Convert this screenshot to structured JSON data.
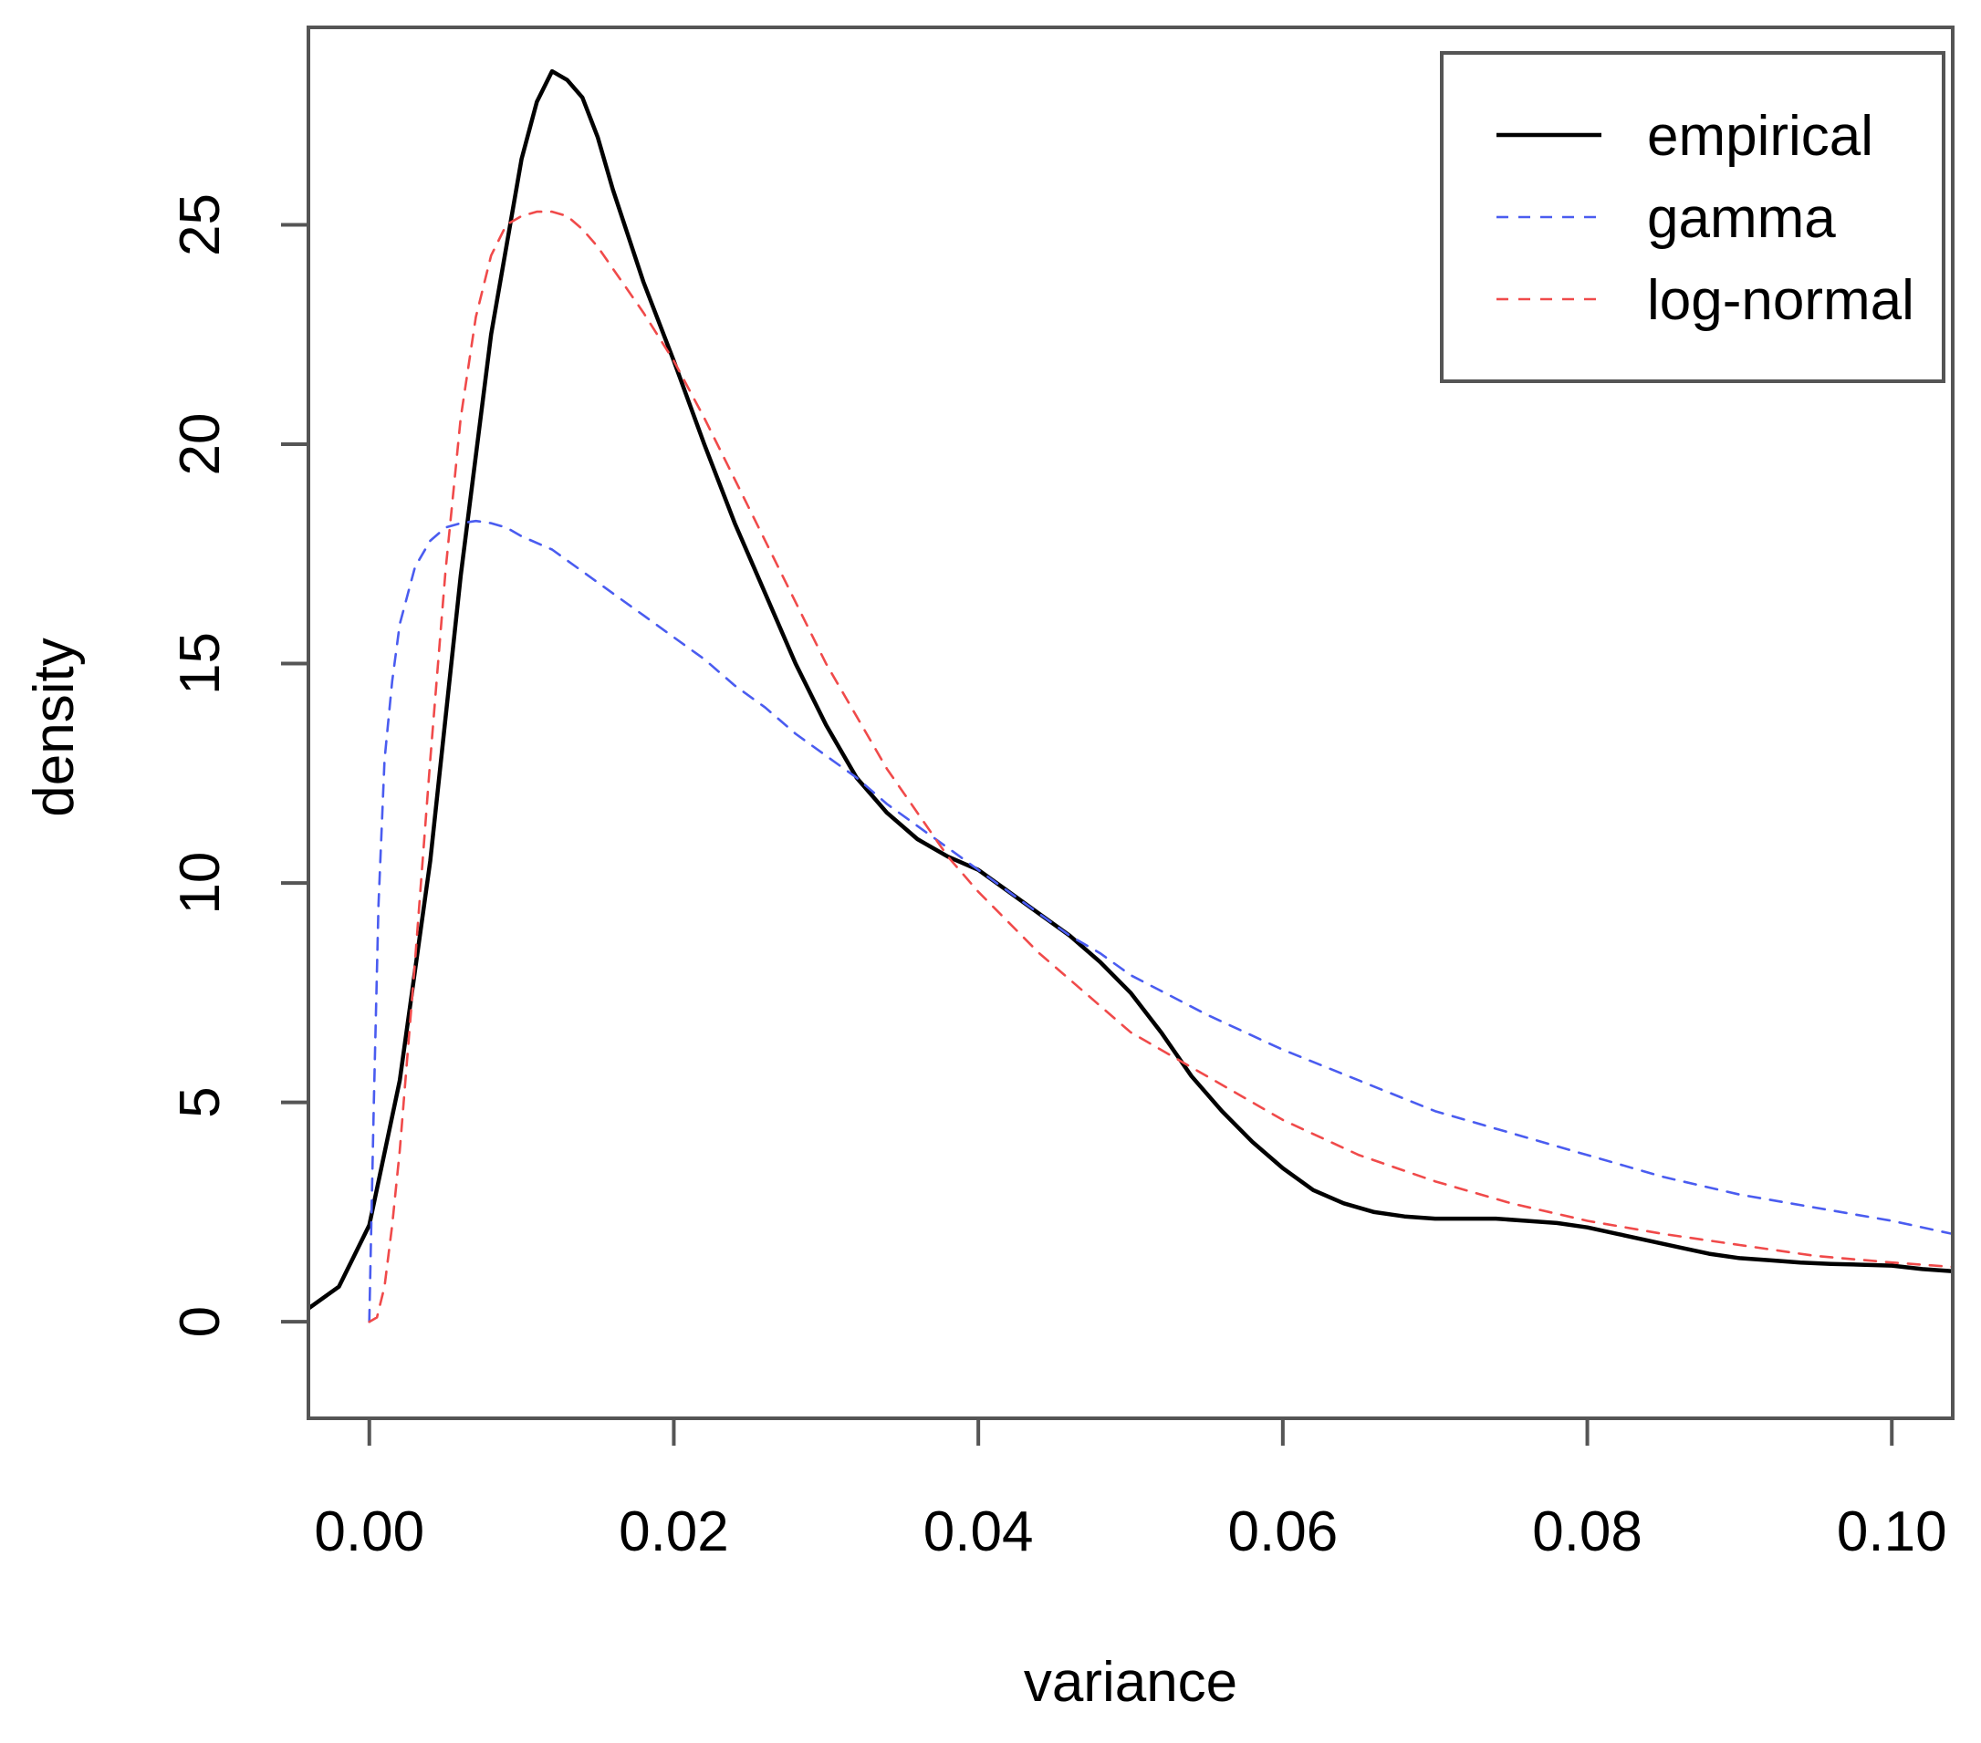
{
  "chart_data": {
    "type": "line",
    "title": "",
    "xlabel": "variance",
    "ylabel": "density",
    "xlim": [
      -0.004,
      0.104
    ],
    "ylim": [
      -2.2,
      29.5
    ],
    "x_ticks": [
      {
        "value": 0.0,
        "label": "0.00"
      },
      {
        "value": 0.02,
        "label": "0.02"
      },
      {
        "value": 0.04,
        "label": "0.04"
      },
      {
        "value": 0.06,
        "label": "0.06"
      },
      {
        "value": 0.08,
        "label": "0.08"
      },
      {
        "value": 0.1,
        "label": "0.10"
      }
    ],
    "y_ticks": [
      {
        "value": 0,
        "label": "0"
      },
      {
        "value": 5,
        "label": "5"
      },
      {
        "value": 10,
        "label": "10"
      },
      {
        "value": 15,
        "label": "15"
      },
      {
        "value": 20,
        "label": "20"
      },
      {
        "value": 25,
        "label": "25"
      }
    ],
    "grid": false,
    "legend_position": "top-right",
    "series": [
      {
        "name": "empirical",
        "color": "#000000",
        "line_style": "solid",
        "x": [
          -0.004,
          -0.002,
          0.0,
          0.002,
          0.004,
          0.006,
          0.008,
          0.01,
          0.011,
          0.012,
          0.013,
          0.014,
          0.015,
          0.016,
          0.018,
          0.02,
          0.022,
          0.024,
          0.026,
          0.028,
          0.03,
          0.032,
          0.034,
          0.036,
          0.038,
          0.04,
          0.042,
          0.044,
          0.046,
          0.048,
          0.05,
          0.052,
          0.054,
          0.056,
          0.058,
          0.06,
          0.062,
          0.064,
          0.066,
          0.068,
          0.07,
          0.072,
          0.074,
          0.076,
          0.078,
          0.08,
          0.082,
          0.084,
          0.086,
          0.088,
          0.09,
          0.092,
          0.094,
          0.096,
          0.098,
          0.1,
          0.102,
          0.104
        ],
        "y": [
          0.3,
          0.8,
          2.2,
          5.5,
          10.5,
          17.0,
          22.5,
          26.5,
          27.8,
          28.5,
          28.3,
          27.9,
          27.0,
          25.8,
          23.7,
          21.9,
          20.0,
          18.2,
          16.6,
          15.0,
          13.6,
          12.4,
          11.6,
          11.0,
          10.6,
          10.3,
          9.8,
          9.3,
          8.8,
          8.2,
          7.5,
          6.6,
          5.6,
          4.8,
          4.1,
          3.5,
          3.0,
          2.7,
          2.5,
          2.4,
          2.35,
          2.35,
          2.35,
          2.3,
          2.25,
          2.15,
          2.0,
          1.85,
          1.7,
          1.55,
          1.45,
          1.4,
          1.35,
          1.32,
          1.3,
          1.28,
          1.2,
          1.15
        ]
      },
      {
        "name": "gamma",
        "color": "#4a5cf0",
        "line_style": "dashed",
        "x": [
          0.0,
          0.0003,
          0.0006,
          0.001,
          0.0015,
          0.002,
          0.003,
          0.004,
          0.005,
          0.006,
          0.007,
          0.008,
          0.009,
          0.01,
          0.012,
          0.014,
          0.016,
          0.018,
          0.02,
          0.022,
          0.024,
          0.026,
          0.028,
          0.03,
          0.032,
          0.034,
          0.036,
          0.038,
          0.04,
          0.042,
          0.044,
          0.046,
          0.048,
          0.05,
          0.055,
          0.06,
          0.065,
          0.07,
          0.075,
          0.08,
          0.085,
          0.09,
          0.095,
          0.1,
          0.104
        ],
        "y": [
          0.0,
          5.0,
          9.5,
          12.8,
          14.6,
          15.9,
          17.2,
          17.8,
          18.1,
          18.2,
          18.25,
          18.2,
          18.1,
          17.9,
          17.6,
          17.1,
          16.6,
          16.1,
          15.6,
          15.1,
          14.5,
          14.0,
          13.4,
          12.9,
          12.4,
          11.8,
          11.3,
          10.8,
          10.3,
          9.8,
          9.3,
          8.8,
          8.4,
          7.9,
          7.0,
          6.2,
          5.5,
          4.8,
          4.3,
          3.8,
          3.3,
          2.9,
          2.6,
          2.3,
          2.0
        ]
      },
      {
        "name": "log-normal",
        "color": "#f04a4a",
        "line_style": "dashed",
        "x": [
          0.0,
          0.0005,
          0.001,
          0.0015,
          0.002,
          0.003,
          0.004,
          0.005,
          0.006,
          0.007,
          0.008,
          0.009,
          0.01,
          0.011,
          0.012,
          0.013,
          0.014,
          0.015,
          0.016,
          0.018,
          0.02,
          0.022,
          0.024,
          0.026,
          0.028,
          0.03,
          0.032,
          0.034,
          0.036,
          0.038,
          0.04,
          0.042,
          0.044,
          0.046,
          0.048,
          0.05,
          0.055,
          0.06,
          0.065,
          0.07,
          0.075,
          0.08,
          0.085,
          0.09,
          0.095,
          0.1,
          0.104
        ],
        "y": [
          0.0,
          0.1,
          0.8,
          2.2,
          3.9,
          8.2,
          12.8,
          17.1,
          20.6,
          22.9,
          24.3,
          25.0,
          25.2,
          25.3,
          25.3,
          25.2,
          24.9,
          24.5,
          24.0,
          23.0,
          21.9,
          20.6,
          19.2,
          17.8,
          16.4,
          15.0,
          13.8,
          12.6,
          11.6,
          10.6,
          9.8,
          9.1,
          8.4,
          7.8,
          7.2,
          6.6,
          5.6,
          4.6,
          3.8,
          3.2,
          2.7,
          2.3,
          2.0,
          1.75,
          1.5,
          1.35,
          1.25
        ]
      }
    ]
  }
}
